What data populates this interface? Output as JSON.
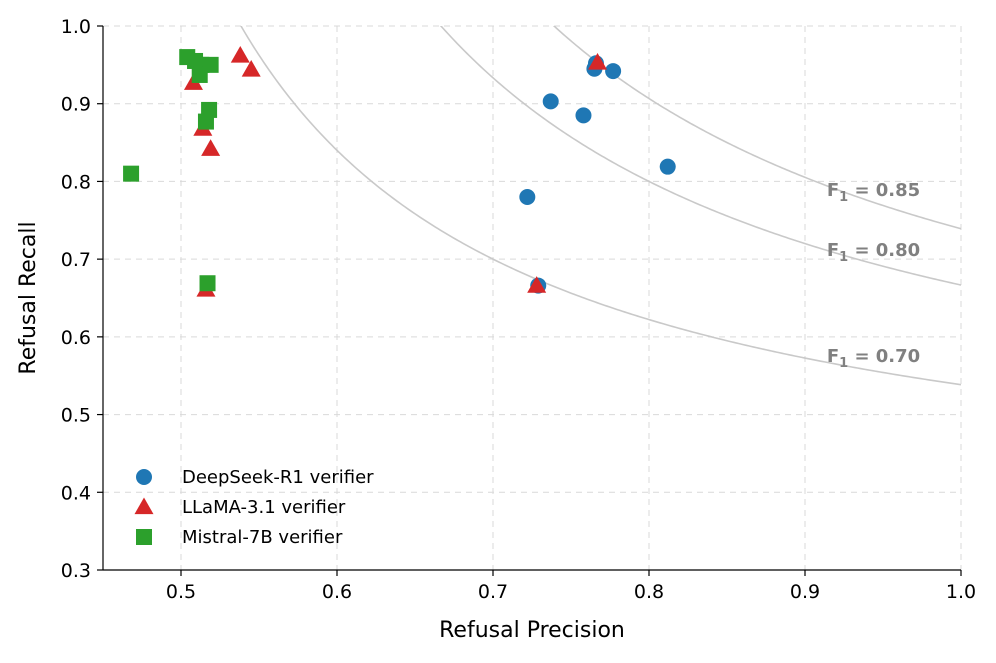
{
  "chart_data": {
    "type": "scatter",
    "title": "",
    "xlabel": "Refusal Precision",
    "ylabel": "Refusal Recall",
    "xlim": [
      0.45,
      1.0
    ],
    "ylim": [
      0.3,
      1.0
    ],
    "grid": true,
    "legend_position": "bottom-left",
    "x_ticks": [
      0.5,
      0.6,
      0.7,
      0.8,
      0.9,
      1.0
    ],
    "x_tick_labels": [
      "0.5",
      "0.6",
      "0.7",
      "0.8",
      "0.9",
      "1.0"
    ],
    "y_ticks": [
      0.3,
      0.4,
      0.5,
      0.6,
      0.7,
      0.8,
      0.9,
      1.0
    ],
    "y_tick_labels": [
      "0.3",
      "0.4",
      "0.5",
      "0.6",
      "0.7",
      "0.8",
      "0.9",
      "1.0"
    ],
    "series": [
      {
        "name": "DeepSeek-R1 verifier",
        "marker": "circle",
        "color": "#1f77b4",
        "points": [
          {
            "x": 0.766,
            "y": 0.952
          },
          {
            "x": 0.765,
            "y": 0.945
          },
          {
            "x": 0.777,
            "y": 0.942
          },
          {
            "x": 0.737,
            "y": 0.903
          },
          {
            "x": 0.758,
            "y": 0.885
          },
          {
            "x": 0.812,
            "y": 0.819
          },
          {
            "x": 0.722,
            "y": 0.78
          },
          {
            "x": 0.729,
            "y": 0.666
          }
        ]
      },
      {
        "name": "LLaMA-3.1 verifier",
        "marker": "triangle",
        "color": "#d62728",
        "points": [
          {
            "x": 0.538,
            "y": 0.962
          },
          {
            "x": 0.545,
            "y": 0.944
          },
          {
            "x": 0.508,
            "y": 0.927
          },
          {
            "x": 0.767,
            "y": 0.953
          },
          {
            "x": 0.514,
            "y": 0.868
          },
          {
            "x": 0.519,
            "y": 0.842
          },
          {
            "x": 0.516,
            "y": 0.661
          },
          {
            "x": 0.728,
            "y": 0.666
          }
        ]
      },
      {
        "name": "Mistral-7B verifier",
        "marker": "square",
        "color": "#2ca02c",
        "points": [
          {
            "x": 0.504,
            "y": 0.96
          },
          {
            "x": 0.509,
            "y": 0.955
          },
          {
            "x": 0.513,
            "y": 0.95
          },
          {
            "x": 0.519,
            "y": 0.95
          },
          {
            "x": 0.512,
            "y": 0.937
          },
          {
            "x": 0.518,
            "y": 0.892
          },
          {
            "x": 0.516,
            "y": 0.877
          },
          {
            "x": 0.468,
            "y": 0.81
          },
          {
            "x": 0.517,
            "y": 0.669
          }
        ]
      }
    ],
    "iso_f1_curves": [
      {
        "f1": 0.7,
        "label_main": "F",
        "label_sub": "1",
        "label_rest": " = 0.70"
      },
      {
        "f1": 0.8,
        "label_main": "F",
        "label_sub": "1",
        "label_rest": " = 0.80"
      },
      {
        "f1": 0.85,
        "label_main": "F",
        "label_sub": "1",
        "label_rest": " = 0.85"
      }
    ]
  }
}
